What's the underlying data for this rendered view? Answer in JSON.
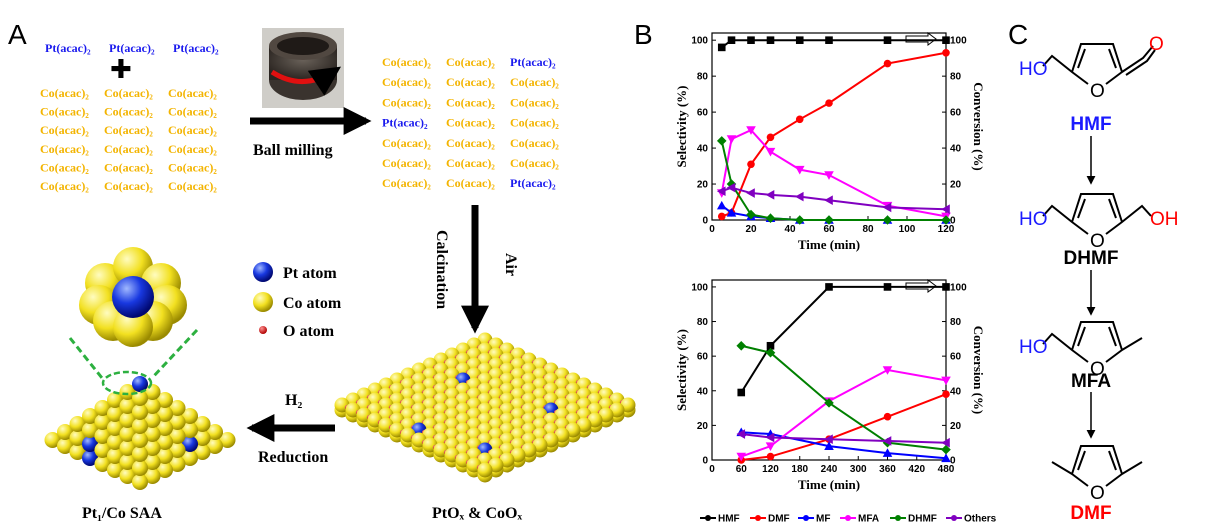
{
  "panel_labels": [
    "A",
    "B",
    "C"
  ],
  "panel_a": {
    "top_row": [
      "Pt(acac)₂",
      "Pt(acac)₂",
      "Pt(acac)₂"
    ],
    "left_rows": [
      [
        "Co(acac)₂",
        "Co(acac)₂",
        "Co(acac)₂"
      ],
      [
        "Co(acac)₂",
        "Co(acac)₂",
        "Co(acac)₂"
      ],
      [
        "Co(acac)₂",
        "Co(acac)₂",
        "Co(acac)₂"
      ],
      [
        "Co(acac)₂",
        "Co(acac)₂",
        "Co(acac)₂"
      ],
      [
        "Co(acac)₂",
        "Co(acac)₂",
        "Co(acac)₂"
      ],
      [
        "Co(acac)₂",
        "Co(acac)₂",
        "Co(acac)₂"
      ]
    ],
    "right_rows": [
      [
        "Co(acac)₂",
        "Co(acac)₂",
        "Pt(acac)₂"
      ],
      [
        "Co(acac)₂",
        "Co(acac)₂",
        "Co(acac)₂"
      ],
      [
        "Co(acac)₂",
        "Co(acac)₂",
        "Co(acac)₂"
      ],
      [
        "Pt(acac)₂",
        "Co(acac)₂",
        "Co(acac)₂"
      ],
      [
        "Co(acac)₂",
        "Co(acac)₂",
        "Co(acac)₂"
      ],
      [
        "Co(acac)₂",
        "Co(acac)₂",
        "Co(acac)₂"
      ],
      [
        "Co(acac)₂",
        "Co(acac)₂",
        "Pt(acac)₂"
      ]
    ],
    "ball_milling": "Ball milling",
    "air": "Air",
    "calcination": "Calcination",
    "h2": "H₂",
    "reduction": "Reduction",
    "legend": [
      "Pt atom",
      "Co atom",
      "O atom"
    ],
    "product": "Pt₁/Co SAA",
    "oxide": "PtOₓ & CoOₓ"
  },
  "chart_data": [
    {
      "type": "line",
      "x_label": "Time (min)",
      "y_label": "Selectivity (%)",
      "y2_label": "Conversion (%)",
      "x": [
        5,
        10,
        20,
        30,
        45,
        60,
        90,
        120
      ],
      "xlim": [
        0,
        120
      ],
      "xticks": [
        0,
        20,
        40,
        60,
        80,
        100,
        120
      ],
      "ylim": [
        0,
        104
      ],
      "yticks": [
        0,
        20,
        40,
        60,
        80,
        100
      ],
      "y2lim": [
        0,
        104
      ],
      "y2ticks": [
        0,
        20,
        40,
        60,
        80,
        100
      ],
      "series": [
        {
          "name": "HMF",
          "color": "#000000",
          "marker": "square",
          "axis": "y2",
          "values": [
            96,
            100,
            100,
            100,
            100,
            100,
            100,
            100
          ]
        },
        {
          "name": "DMF",
          "color": "#ff0000",
          "marker": "circle",
          "values": [
            2,
            4,
            31,
            46,
            56,
            65,
            87,
            93
          ]
        },
        {
          "name": "MF",
          "color": "#0000ff",
          "marker": "triangle-up",
          "values": [
            8,
            4,
            2,
            1,
            0,
            0,
            0,
            0
          ]
        },
        {
          "name": "MFA",
          "color": "#ff00ff",
          "marker": "triangle-down",
          "values": [
            15,
            45,
            50,
            38,
            28,
            25,
            8,
            2
          ]
        },
        {
          "name": "DHMF",
          "color": "#008000",
          "marker": "diamond",
          "values": [
            44,
            20,
            3,
            1,
            0,
            0,
            0,
            0
          ]
        },
        {
          "name": "Others",
          "color": "#8000c0",
          "marker": "triangle-left",
          "values": [
            16,
            18,
            15,
            14,
            13,
            11,
            7,
            6
          ]
        }
      ]
    },
    {
      "type": "line",
      "x_label": "Time (min)",
      "y_label": "Selectivity (%)",
      "y2_label": "Conversion (%)",
      "x": [
        60,
        120,
        240,
        360,
        480
      ],
      "xlim": [
        0,
        480
      ],
      "xticks": [
        0,
        60,
        120,
        180,
        240,
        300,
        360,
        420,
        480
      ],
      "ylim": [
        0,
        104
      ],
      "yticks": [
        0,
        20,
        40,
        60,
        80,
        100
      ],
      "y2lim": [
        0,
        104
      ],
      "y2ticks": [
        0,
        20,
        40,
        60,
        80,
        100
      ],
      "series": [
        {
          "color": "#000000",
          "marker": "square",
          "axis": "y2",
          "values": [
            39,
            66,
            100,
            100,
            100
          ]
        },
        {
          "color": "#ff0000",
          "marker": "circle",
          "values": [
            0,
            2,
            12,
            25,
            38
          ]
        },
        {
          "color": "#0000ff",
          "marker": "triangle-up",
          "values": [
            16,
            15,
            8,
            4,
            1
          ]
        },
        {
          "color": "#ff00ff",
          "marker": "triangle-down",
          "values": [
            2,
            8,
            34,
            52,
            46
          ]
        },
        {
          "color": "#008000",
          "marker": "diamond",
          "values": [
            66,
            62,
            33,
            10,
            6
          ]
        },
        {
          "color": "#8000c0",
          "marker": "triangle-left",
          "values": [
            15,
            13,
            12,
            11,
            10
          ]
        }
      ]
    }
  ],
  "panel_c": {
    "compounds": [
      {
        "name": "HMF",
        "groups": [
          "HO",
          "O",
          "O"
        ]
      },
      {
        "name": "DHMF",
        "groups": [
          "HO",
          "O",
          "OH"
        ]
      },
      {
        "name": "MFA",
        "groups": [
          "HO",
          "O"
        ]
      },
      {
        "name": "DMF",
        "groups": [
          "O"
        ]
      }
    ]
  }
}
